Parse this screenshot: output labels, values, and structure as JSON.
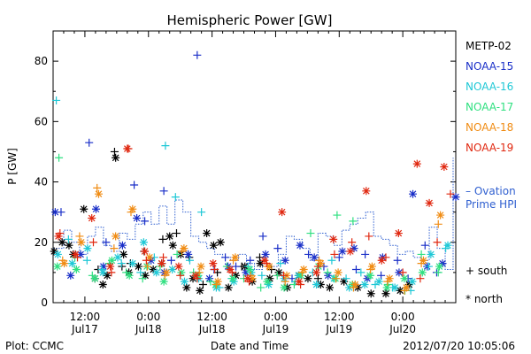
{
  "footer": {
    "plot_credit": "Plot: CCMC",
    "timestamp": "2012/07/20 10:05:06"
  },
  "chart_data": {
    "type": "scatter",
    "title": "Hemispheric Power [GW]",
    "xlabel": "Date and Time",
    "ylabel": "P [GW]",
    "xlim": [
      6.0,
      82.0
    ],
    "ylim": [
      0,
      90
    ],
    "x_unit": "hours since 2012-07-17 00:00 UT",
    "x_ticks": [
      {
        "x": 12,
        "top": "12:00",
        "bottom": "Jul17"
      },
      {
        "x": 24,
        "top": "0:00",
        "bottom": "Jul18"
      },
      {
        "x": 36,
        "top": "12:00",
        "bottom": "Jul18"
      },
      {
        "x": 48,
        "top": "0:00",
        "bottom": "Jul19"
      },
      {
        "x": 60,
        "top": "12:00",
        "bottom": "Jul19"
      },
      {
        "x": 72,
        "top": "0:00",
        "bottom": "Jul20"
      }
    ],
    "y_ticks": [
      0,
      20,
      40,
      60,
      80
    ],
    "legend": {
      "placement": "right",
      "satellites": [
        {
          "name": "METP-02",
          "color": "#000000"
        },
        {
          "name": "NOAA-15",
          "color": "#1a2fc8"
        },
        {
          "name": "NOAA-16",
          "color": "#1fc8d6"
        },
        {
          "name": "NOAA-17",
          "color": "#2fe080"
        },
        {
          "name": "NOAA-18",
          "color": "#f08c14"
        },
        {
          "name": "NOAA-19",
          "color": "#e02810"
        }
      ],
      "ovation_label_line1": "– Ovation",
      "ovation_label_line2": "Prime HPI",
      "ovation_color": "#2f5fd0",
      "south_label": "+ south",
      "north_label": "* north"
    },
    "ovation_hpi": {
      "x": [
        6,
        8,
        9.5,
        11,
        12.5,
        14,
        15.5,
        17,
        18.5,
        20,
        21.5,
        23,
        24.5,
        26,
        27.5,
        29,
        30.5,
        32,
        33.5,
        35,
        36.5,
        38,
        39.5,
        41,
        42.5,
        44,
        45.5,
        47,
        48.5,
        50,
        51.5,
        53,
        54.5,
        56,
        57.5,
        59,
        60.5,
        62,
        63.5,
        65,
        66.5,
        68,
        69.5,
        71,
        72.5,
        74,
        75.5,
        77,
        78.5,
        80,
        81.5
      ],
      "y": [
        18,
        24,
        20,
        16,
        22,
        25,
        19,
        17,
        23,
        21,
        26,
        30,
        26,
        32,
        26,
        34,
        30,
        22,
        20,
        18,
        16,
        15,
        14,
        16,
        13,
        11,
        13,
        12,
        16,
        22,
        21,
        18,
        14,
        23,
        22,
        19,
        24,
        26,
        28,
        30,
        22,
        21,
        19,
        16,
        17,
        15,
        14,
        25,
        18,
        11,
        48
      ]
    },
    "series": [
      {
        "sat": "METP-02",
        "hemisphere": "south",
        "x": [
          14.5,
          17.6,
          19.0,
          20.6,
          23.2,
          26.7,
          29.3,
          31.7,
          34.3,
          37.0,
          41.6,
          45.0,
          47.2,
          56.0
        ],
        "y": [
          11,
          50,
          12,
          13,
          17,
          21,
          23,
          15,
          6,
          10,
          12,
          15,
          11,
          8
        ]
      },
      {
        "sat": "METP-02",
        "hemisphere": "north",
        "x": [
          6.2,
          7.7,
          9.0,
          9.8,
          11.8,
          13.9,
          15.4,
          16.2,
          17.8,
          19.3,
          20.3,
          22.1,
          23.4,
          24.9,
          26.5,
          28.0,
          28.6,
          30.1,
          31.2,
          32.4,
          33.7,
          35.0,
          36.3,
          37.6,
          39.1,
          40.5,
          42.2,
          43.6,
          45.1,
          46.9,
          48.6,
          50.2,
          52.4,
          54.1,
          56.5,
          58.2,
          60.9,
          63.5,
          66.0,
          68.8,
          71.5,
          73.2
        ],
        "y": [
          17,
          20,
          19,
          16,
          31,
          8,
          6,
          9,
          48,
          16,
          10,
          12,
          9,
          11,
          13,
          22,
          19,
          16,
          5,
          8,
          4,
          23,
          19,
          20,
          5,
          9,
          12,
          7,
          13,
          8,
          10,
          5,
          9,
          8,
          6,
          5,
          7,
          5,
          3,
          3,
          4,
          6
        ]
      },
      {
        "sat": "NOAA-15",
        "hemisphere": "south",
        "x": [
          7.5,
          12.8,
          16.0,
          21.3,
          23.3,
          26.9,
          28.3,
          33.2,
          36.4,
          38.5,
          40.5,
          43.2,
          45.6,
          48.4,
          51.1,
          54.2,
          57.1,
          60.0,
          63.2,
          64.9,
          67.9,
          71.0,
          73.0,
          76.2,
          78.4
        ],
        "y": [
          30,
          53,
          20,
          39,
          27,
          37,
          14,
          82,
          11,
          15,
          12,
          14,
          22,
          18,
          8,
          16,
          12,
          15,
          11,
          16,
          9,
          14,
          8,
          19,
          10
        ]
      },
      {
        "sat": "NOAA-15",
        "hemisphere": "north",
        "x": [
          6.4,
          9.3,
          11.2,
          14.1,
          15.5,
          19.1,
          21.8,
          24.5,
          27.0,
          31.5,
          35.5,
          39.0,
          42.4,
          46.1,
          49.8,
          52.6,
          55.3,
          57.9,
          60.6,
          62.8,
          65.3,
          68.2,
          71.3,
          73.9,
          76.6,
          79.5,
          82.0
        ],
        "y": [
          30,
          9,
          16,
          31,
          12,
          19,
          28,
          14,
          10,
          16,
          8,
          12,
          10,
          16,
          14,
          19,
          15,
          9,
          17,
          18,
          8,
          15,
          10,
          36,
          12,
          13,
          35
        ]
      },
      {
        "sat": "NOAA-16",
        "hemisphere": "south",
        "x": [
          6.6,
          8.9,
          12.4,
          15.2,
          18.9,
          22.5,
          25.1,
          27.2,
          29.1,
          31.8,
          34.0,
          37.4,
          39.7,
          42.8,
          45.4,
          48.9,
          51.7,
          55.0,
          58.6,
          61.3,
          64.1,
          66.8,
          70.1,
          73.5,
          76.9,
          80.1
        ],
        "y": [
          67,
          21,
          14,
          11,
          13,
          10,
          15,
          52,
          35,
          14,
          30,
          5,
          8,
          12,
          9,
          13,
          7,
          10,
          14,
          8,
          10,
          6,
          5,
          4,
          12,
          18
        ]
      },
      {
        "sat": "NOAA-16",
        "hemisphere": "north",
        "x": [
          6.9,
          9.6,
          12.5,
          15.4,
          18.2,
          21.0,
          23.1,
          25.5,
          28.5,
          30.8,
          33.5,
          36.8,
          40.1,
          43.4,
          46.7,
          49.6,
          52.3,
          55.7,
          59.0,
          61.9,
          64.8,
          67.5,
          70.5,
          73.8,
          77.3,
          80.5
        ],
        "y": [
          16,
          13,
          18,
          10,
          15,
          13,
          20,
          10,
          11,
          7,
          8,
          5,
          7,
          10,
          6,
          8,
          9,
          6,
          8,
          5,
          6,
          7,
          5,
          7,
          16,
          19
        ]
      },
      {
        "sat": "NOAA-17",
        "hemisphere": "south",
        "x": [
          7.1,
          10.1,
          13.4,
          16.6,
          19.8,
          22.9,
          26.2,
          29.4,
          32.5,
          35.7,
          38.8,
          42.0,
          45.2,
          48.3,
          51.5,
          54.6,
          57.8,
          59.6,
          62.6,
          65.9,
          69.2,
          72.4,
          75.5,
          78.7
        ],
        "y": [
          48,
          15,
          9,
          13,
          10,
          8,
          12,
          16,
          10,
          7,
          12,
          8,
          5,
          9,
          6,
          23,
          10,
          29,
          27,
          9,
          6,
          4,
          16,
          10
        ]
      },
      {
        "sat": "NOAA-17",
        "hemisphere": "north",
        "x": [
          6.8,
          10.4,
          13.9,
          17.1,
          20.4,
          23.7,
          26.9,
          30.2,
          33.4,
          36.7,
          39.9,
          43.1,
          46.4,
          49.6,
          52.8,
          56.1,
          59.3,
          62.5,
          65.8,
          69.0,
          72.3,
          75.7,
          78.9
        ],
        "y": [
          12,
          11,
          8,
          14,
          9,
          12,
          7,
          10,
          9,
          6,
          8,
          11,
          7,
          5,
          9,
          12,
          8,
          6,
          9,
          5,
          8,
          10,
          12
        ]
      },
      {
        "sat": "NOAA-18",
        "hemisphere": "south",
        "x": [
          7.8,
          11.0,
          14.3,
          17.5,
          20.7,
          23.8,
          27.1,
          30.3,
          33.6,
          36.8,
          40.0,
          43.3,
          46.5,
          49.8,
          53.0,
          56.2,
          59.4,
          62.7,
          65.9,
          69.1,
          72.3,
          75.5,
          78.7
        ],
        "y": [
          14,
          22,
          38,
          18,
          30,
          12,
          9,
          17,
          10,
          6,
          14,
          9,
          12,
          7,
          10,
          14,
          8,
          5,
          11,
          7,
          4,
          13,
          26
        ]
      },
      {
        "sat": "NOAA-18",
        "hemisphere": "north",
        "x": [
          8.1,
          11.3,
          14.6,
          17.8,
          21.0,
          24.2,
          27.4,
          30.7,
          33.9,
          37.1,
          40.4,
          43.6,
          46.8,
          50.1,
          53.3,
          56.5,
          59.8,
          63.0,
          66.2,
          69.5,
          72.7,
          75.9,
          79.1
        ],
        "y": [
          13,
          20,
          36,
          22,
          31,
          15,
          10,
          18,
          12,
          7,
          15,
          8,
          12,
          9,
          11,
          13,
          10,
          6,
          12,
          8,
          5,
          14,
          29
        ]
      },
      {
        "sat": "NOAA-19",
        "hemisphere": "south",
        "x": [
          7.3,
          10.6,
          13.6,
          17.0,
          20.2,
          23.6,
          26.8,
          30.0,
          33.2,
          36.5,
          39.8,
          43.0,
          46.3,
          49.5,
          52.7,
          56.0,
          59.1,
          62.4,
          65.6,
          68.8,
          72.0,
          75.3,
          78.5,
          81.0
        ],
        "y": [
          23,
          15,
          20,
          10,
          51,
          14,
          15,
          9,
          8,
          11,
          10,
          7,
          13,
          9,
          6,
          12,
          16,
          20,
          22,
          15,
          10,
          8,
          20,
          36
        ]
      },
      {
        "sat": "NOAA-19",
        "hemisphere": "north",
        "x": [
          7.0,
          10.2,
          13.3,
          16.8,
          20.0,
          23.3,
          26.5,
          29.7,
          32.9,
          36.2,
          39.4,
          42.7,
          45.9,
          49.2,
          52.4,
          55.7,
          58.9,
          62.1,
          65.1,
          68.0,
          71.2,
          74.7,
          77.0,
          79.8
        ],
        "y": [
          22,
          16,
          28,
          12,
          51,
          17,
          13,
          12,
          9,
          13,
          11,
          8,
          14,
          30,
          7,
          10,
          21,
          17,
          37,
          14,
          23,
          46,
          33,
          45
        ]
      }
    ]
  }
}
